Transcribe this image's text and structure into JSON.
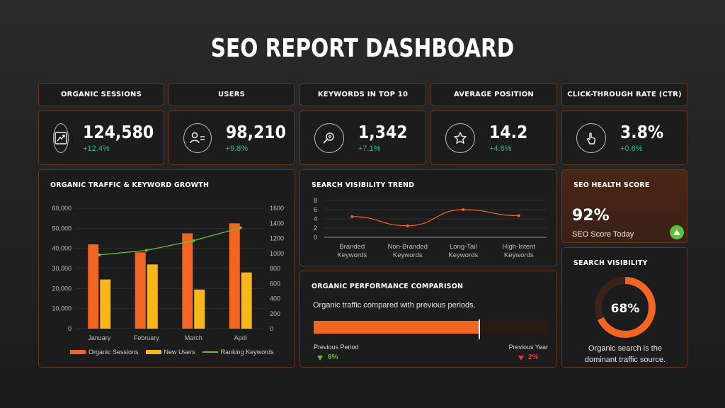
{
  "title": "SEO REPORT DASHBOARD",
  "kpis": [
    {
      "label": "ORGANIC SESSIONS",
      "value": "124,580",
      "delta": "+12.4%",
      "icon": "trend-chart-icon"
    },
    {
      "label": "USERS",
      "value": "98,210",
      "delta": "+9.8%",
      "icon": "users-icon"
    },
    {
      "label": "KEYWORDS IN TOP 10",
      "value": "1,342",
      "delta": "+7.1%",
      "icon": "search-gear-icon"
    },
    {
      "label": "AVERAGE POSITION",
      "value": "14.2",
      "delta": "+4.6%",
      "icon": "star-icon"
    },
    {
      "label": "CLICK-THROUGH RATE (CTR)",
      "value": "3.8%",
      "delta": "+0.6%",
      "icon": "pointer-hand-icon"
    }
  ],
  "traffic_panel": {
    "title": "ORGANIC TRAFFIC & KEYWORD GROWTH"
  },
  "visibility_trend_panel": {
    "title": "SEARCH VISIBILITY TREND"
  },
  "performance_panel": {
    "title": "ORGANIC PERFORMANCE COMPARISON",
    "subtitle": "Organic traffic compared with previous periods.",
    "left_label": "Previous Period",
    "left_value": "6%",
    "right_label": "Previous Year",
    "right_value": "2%",
    "bar_fill_fraction": 0.71,
    "colors": {
      "bar": "#f26522",
      "track": "#2a1a12",
      "up": "#5bbf3a",
      "down": "#e53935"
    }
  },
  "health_panel": {
    "title": "SEO HEALTH SCORE",
    "value": "92%",
    "subtitle": "SEO Score Today"
  },
  "search_visibility_panel": {
    "title": "SEARCH VISIBILITY",
    "value": "68%",
    "fraction": 0.68,
    "caption_line1": "Organic search is the",
    "caption_line2": "dominant traffic source."
  },
  "chart_data": [
    {
      "type": "bar",
      "categories": [
        "January",
        "February",
        "March",
        "April"
      ],
      "series": [
        {
          "name": "Organic Sessions",
          "values": [
            42000,
            38000,
            47500,
            52500
          ],
          "color": "#f26522",
          "axis": "left"
        },
        {
          "name": "New Users",
          "values": [
            24500,
            32000,
            19500,
            28000
          ],
          "color": "#f7b718",
          "axis": "left"
        },
        {
          "name": "Ranking Keywords",
          "values": [
            980,
            1040,
            1170,
            1340
          ],
          "color": "#6fbf3d",
          "axis": "right",
          "type": "line"
        }
      ],
      "y_left": {
        "ticks": [
          "0",
          "10,000",
          "20,000",
          "30,000",
          "40,000",
          "50,000",
          "60,000"
        ],
        "lim": [
          0,
          60000
        ]
      },
      "y_right": {
        "ticks": [
          "0",
          "200",
          "400",
          "600",
          "800",
          "1000",
          "1200",
          "1400",
          "1600"
        ],
        "lim": [
          0,
          1600
        ]
      },
      "legend": "bottom",
      "grid": true
    },
    {
      "type": "line",
      "categories": [
        "Branded Keywords",
        "Non-Branded Keywords",
        "Long-Tail Keywords",
        "High-Intent Keywords"
      ],
      "category_lines": [
        [
          "Branded",
          "Keywords"
        ],
        [
          "Non-Branded",
          "Keywords"
        ],
        [
          "Long-Tail",
          "Keywords"
        ],
        [
          "High-Intent",
          "Keywords"
        ]
      ],
      "values": [
        4.5,
        2.5,
        6.0,
        4.7
      ],
      "y_ticks": [
        "0",
        "2",
        "4",
        "6",
        "8"
      ],
      "ylim": [
        0,
        8
      ],
      "color": "#f26522",
      "grid": true
    }
  ]
}
